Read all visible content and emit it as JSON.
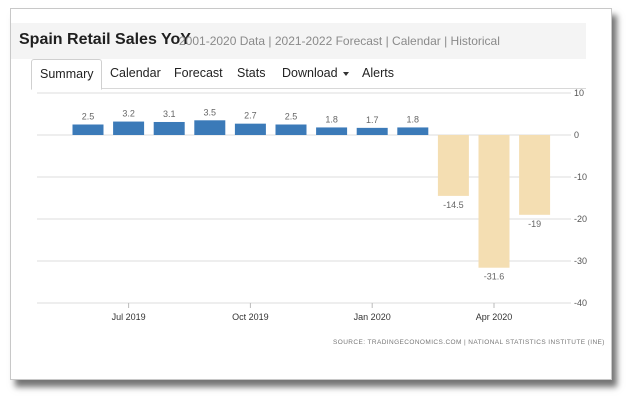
{
  "header": {
    "title": "Spain Retail Sales YoY",
    "subtitle": "2001-2020 Data | 2021-2022 Forecast | Calendar | Historical"
  },
  "tabs": [
    {
      "label": "Summary",
      "active": true
    },
    {
      "label": "Calendar",
      "active": false
    },
    {
      "label": "Forecast",
      "active": false
    },
    {
      "label": "Stats",
      "active": false
    },
    {
      "label": "Download",
      "active": false,
      "dropdown": true
    },
    {
      "label": "Alerts",
      "active": false
    }
  ],
  "source": "SOURCE: TRADINGECONOMICS.COM  |  NATIONAL STATISTICS INSTITUTE (INE)",
  "colors": {
    "positive_bar": "#3b7ab8",
    "negative_bar": "#f4deb2",
    "gridline": "#dddddd"
  },
  "chart_data": {
    "type": "bar",
    "title": "",
    "xlabel": "",
    "ylabel": "",
    "ylim": [
      -40,
      10
    ],
    "yticks": [
      10,
      0,
      -10,
      -20,
      -30,
      -40
    ],
    "y_axis_side": "right",
    "grid": true,
    "categories": [
      "Jun 2019",
      "Jul 2019",
      "Aug 2019",
      "Sep 2019",
      "Oct 2019",
      "Nov 2019",
      "Dec 2019",
      "Jan 2020",
      "Feb 2020",
      "Mar 2020",
      "Apr 2020",
      "May 2020"
    ],
    "values": [
      2.5,
      3.2,
      3.1,
      3.5,
      2.7,
      2.5,
      1.8,
      1.7,
      1.8,
      -14.5,
      -31.6,
      -19
    ],
    "data_labels": [
      "2.5",
      "3.2",
      "3.1",
      "3.5",
      "2.7",
      "2.5",
      "1.8",
      "1.7",
      "1.8",
      "-14.5",
      "-31.6",
      "-19"
    ],
    "x_tick_labels": [
      {
        "label": "Jul 2019",
        "category": "Jul 2019"
      },
      {
        "label": "Oct 2019",
        "category": "Oct 2019"
      },
      {
        "label": "Jan 2020",
        "category": "Jan 2020"
      },
      {
        "label": "Apr 2020",
        "category": "Apr 2020"
      }
    ]
  }
}
